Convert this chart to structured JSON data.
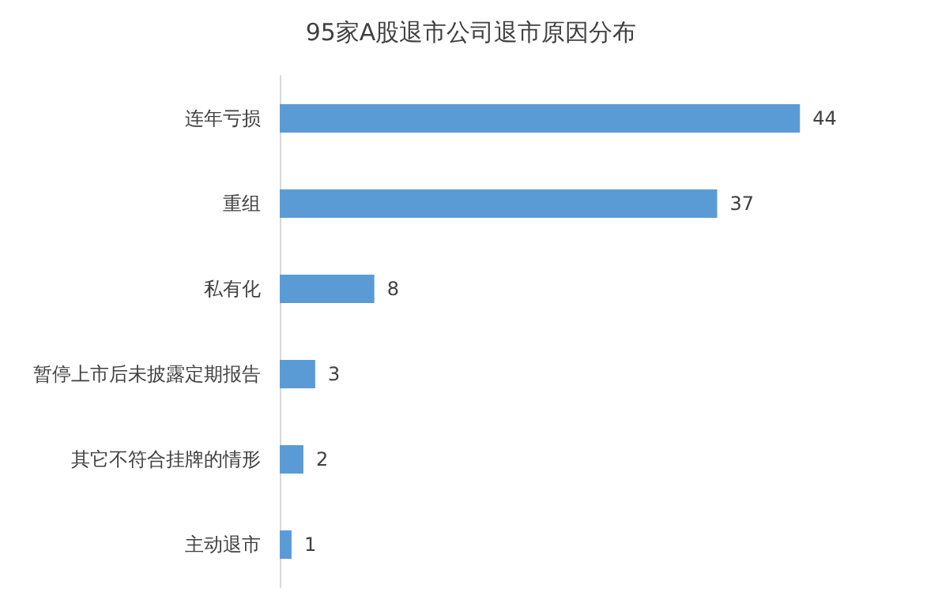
{
  "chart_data": {
    "type": "bar",
    "orientation": "horizontal",
    "title": "95家A股退市公司退市原因分布",
    "categories": [
      "连年亏损",
      "重组",
      "私有化",
      "暂停上市后未披露定期报告",
      "其它不符合挂牌的情形",
      "主动退市"
    ],
    "values": [
      44,
      37,
      8,
      3,
      2,
      1
    ],
    "color": "#5b9bd5",
    "data_labels": true
  }
}
